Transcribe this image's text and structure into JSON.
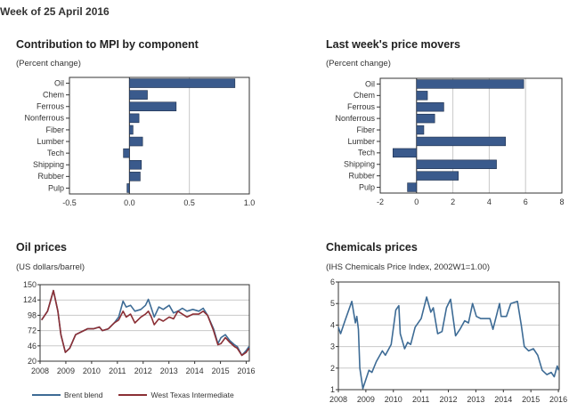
{
  "header": {
    "title": "Week of 25 April 2016"
  },
  "colors": {
    "bar": "#3a5a8c",
    "brent": "#3d6b95",
    "wti": "#8b2f35",
    "grid": "#c8c8c8"
  },
  "chart_data": [
    {
      "type": "bar",
      "orientation": "horizontal",
      "title": "Contribution to MPI by component",
      "subtitle": "(Percent change)",
      "categories": [
        "Oil",
        "Chem",
        "Ferrous",
        "Nonferrous",
        "Fiber",
        "Lumber",
        "Tech",
        "Shipping",
        "Rubber",
        "Pulp"
      ],
      "values": [
        0.88,
        0.15,
        0.39,
        0.08,
        0.03,
        0.11,
        -0.05,
        0.1,
        0.09,
        -0.02
      ],
      "xlim": [
        -0.5,
        1.0
      ],
      "xticks": [
        -0.5,
        0.0,
        0.5,
        1.0
      ],
      "xtick_labels": [
        "-0.5",
        "0.0",
        "0.5",
        "1.0"
      ],
      "grid": true
    },
    {
      "type": "bar",
      "orientation": "horizontal",
      "title": "Last week's price movers",
      "subtitle": "(Percent change)",
      "categories": [
        "Oil",
        "Chem",
        "Ferrous",
        "Nonferrous",
        "Fiber",
        "Lumber",
        "Tech",
        "Shipping",
        "Rubber",
        "Pulp"
      ],
      "values": [
        5.9,
        0.6,
        1.5,
        1.0,
        0.4,
        4.9,
        -1.3,
        4.4,
        2.3,
        -0.5
      ],
      "xlim": [
        -2,
        8
      ],
      "xticks": [
        -2,
        0,
        2,
        4,
        6,
        8
      ],
      "xtick_labels": [
        "-2",
        "0",
        "2",
        "4",
        "6",
        "8"
      ],
      "grid": true
    },
    {
      "type": "line",
      "title": "Oil prices",
      "subtitle": "(US dollars/barrel)",
      "xlim": [
        2008,
        2016.12
      ],
      "ylim": [
        20,
        150
      ],
      "yticks": [
        20,
        46,
        72,
        98,
        124,
        150
      ],
      "ytick_labels": [
        "20",
        "46",
        "72",
        "98",
        "124",
        "150"
      ],
      "xticks": [
        2008,
        2009,
        2010,
        2011,
        2012,
        2013,
        2014,
        2015,
        2016
      ],
      "xtick_labels": [
        "2008",
        "2009",
        "2010",
        "2011",
        "2012",
        "2013",
        "2014",
        "2015",
        "2016"
      ],
      "grid": true,
      "legend": "bottom",
      "x": [
        2008.06,
        2008.29,
        2008.52,
        2008.69,
        2008.81,
        2008.98,
        2009.15,
        2009.38,
        2009.61,
        2009.84,
        2010.07,
        2010.3,
        2010.42,
        2010.65,
        2010.88,
        2011.05,
        2011.22,
        2011.34,
        2011.51,
        2011.68,
        2011.91,
        2012.09,
        2012.2,
        2012.32,
        2012.43,
        2012.61,
        2012.78,
        2013.01,
        2013.18,
        2013.35,
        2013.52,
        2013.7,
        2013.93,
        2014.16,
        2014.33,
        2014.5,
        2014.73,
        2014.9,
        2015.02,
        2015.19,
        2015.36,
        2015.54,
        2015.65,
        2015.83,
        2016.0,
        2016.11
      ],
      "series": [
        {
          "name": "Brent blend",
          "values": [
            90,
            105,
            140,
            105,
            65,
            35,
            42,
            65,
            70,
            75,
            75,
            78,
            72,
            75,
            85,
            95,
            122,
            112,
            115,
            105,
            108,
            115,
            125,
            110,
            95,
            112,
            108,
            115,
            102,
            105,
            110,
            105,
            108,
            105,
            110,
            98,
            75,
            50,
            60,
            65,
            55,
            48,
            45,
            30,
            38,
            45
          ]
        },
        {
          "name": "West Texas Intermediate",
          "values": [
            90,
            105,
            140,
            105,
            65,
            35,
            42,
            65,
            70,
            75,
            75,
            78,
            72,
            75,
            85,
            90,
            105,
            95,
            100,
            85,
            95,
            100,
            105,
            95,
            82,
            92,
            88,
            95,
            92,
            105,
            100,
            95,
            100,
            100,
            105,
            98,
            72,
            48,
            50,
            60,
            52,
            45,
            42,
            30,
            35,
            42
          ]
        }
      ]
    },
    {
      "type": "line",
      "title": "Chemicals prices",
      "subtitle": "(IHS Chemicals Price Index, 2002W1=1.00)",
      "xlim": [
        2008,
        2016.03
      ],
      "ylim": [
        1,
        6
      ],
      "yticks": [
        1,
        2,
        3,
        4,
        5,
        6
      ],
      "ytick_labels": [
        "1",
        "2",
        "3",
        "4",
        "5",
        "6"
      ],
      "xticks": [
        2008,
        2009,
        2010,
        2011,
        2012,
        2013,
        2014,
        2015,
        2016
      ],
      "xtick_labels": [
        "2008",
        "2009",
        "2010",
        "2011",
        "2012",
        "2013",
        "2014",
        "2015",
        "2016"
      ],
      "grid": true,
      "x": [
        2008.0,
        2008.08,
        2008.24,
        2008.49,
        2008.62,
        2008.67,
        2008.73,
        2008.78,
        2008.89,
        2009.11,
        2009.22,
        2009.38,
        2009.6,
        2009.71,
        2009.92,
        2010.09,
        2010.2,
        2010.25,
        2010.41,
        2010.52,
        2010.63,
        2010.79,
        2011.01,
        2011.21,
        2011.36,
        2011.45,
        2011.61,
        2011.77,
        2011.93,
        2012.08,
        2012.26,
        2012.42,
        2012.59,
        2012.73,
        2012.88,
        2013.02,
        2013.18,
        2013.51,
        2013.62,
        2013.78,
        2013.86,
        2013.92,
        2014.11,
        2014.27,
        2014.51,
        2014.65,
        2014.76,
        2014.92,
        2015.09,
        2015.25,
        2015.41,
        2015.58,
        2015.74,
        2015.85,
        2015.96,
        2016.01
      ],
      "series": [
        {
          "values": [
            3.9,
            3.6,
            4.2,
            5.1,
            4.1,
            4.4,
            3.8,
            2.0,
            1.05,
            1.9,
            1.8,
            2.3,
            2.8,
            2.6,
            3.1,
            4.7,
            4.9,
            3.6,
            2.9,
            3.2,
            3.1,
            3.9,
            4.3,
            5.3,
            4.6,
            4.8,
            3.6,
            3.7,
            4.8,
            5.2,
            3.5,
            3.8,
            4.2,
            4.1,
            5.0,
            4.4,
            4.3,
            4.3,
            3.8,
            4.6,
            5.0,
            4.4,
            4.4,
            5.0,
            5.1,
            4.0,
            3.0,
            2.8,
            2.9,
            2.6,
            1.9,
            1.7,
            1.8,
            1.6,
            2.1,
            1.9
          ]
        }
      ]
    }
  ]
}
